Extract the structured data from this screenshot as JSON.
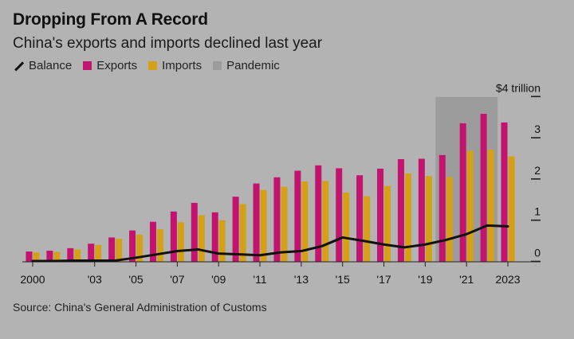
{
  "title": "Dropping From A Record",
  "subtitle": "China's exports and imports declined last year",
  "legend": {
    "balance": "Balance",
    "exports": "Exports",
    "imports": "Imports",
    "pandemic": "Pandemic"
  },
  "source": "Source: China's General Administration of Customs",
  "colors": {
    "exports": "#c2136f",
    "imports": "#d4a017",
    "balance": "#111111",
    "pandemic": "#9c9c9c",
    "background": "#b3b3b3"
  },
  "chart_data": {
    "type": "bar",
    "x": [
      2000,
      2001,
      2002,
      2003,
      2004,
      2005,
      2006,
      2007,
      2008,
      2009,
      2010,
      2011,
      2012,
      2013,
      2014,
      2015,
      2016,
      2017,
      2018,
      2019,
      2020,
      2021,
      2022,
      2023
    ],
    "x_tick_labels": [
      {
        "year": 2000,
        "label": "2000"
      },
      {
        "year": 2003,
        "label": "'03"
      },
      {
        "year": 2005,
        "label": "'05"
      },
      {
        "year": 2007,
        "label": "'07"
      },
      {
        "year": 2009,
        "label": "'09"
      },
      {
        "year": 2011,
        "label": "'11"
      },
      {
        "year": 2013,
        "label": "'13"
      },
      {
        "year": 2015,
        "label": "'15"
      },
      {
        "year": 2017,
        "label": "'17"
      },
      {
        "year": 2019,
        "label": "'19"
      },
      {
        "year": 2021,
        "label": "'21"
      },
      {
        "year": 2023,
        "label": "2023"
      }
    ],
    "series": [
      {
        "name": "Exports",
        "type": "bar",
        "values": [
          0.25,
          0.27,
          0.33,
          0.44,
          0.59,
          0.76,
          0.97,
          1.22,
          1.43,
          1.2,
          1.58,
          1.9,
          2.05,
          2.21,
          2.34,
          2.27,
          2.1,
          2.26,
          2.49,
          2.5,
          2.59,
          3.36,
          3.59,
          3.38
        ]
      },
      {
        "name": "Imports",
        "type": "bar",
        "values": [
          0.23,
          0.24,
          0.3,
          0.41,
          0.56,
          0.66,
          0.79,
          0.96,
          1.13,
          1.01,
          1.4,
          1.74,
          1.82,
          1.95,
          1.96,
          1.68,
          1.59,
          1.84,
          2.14,
          2.08,
          2.06,
          2.69,
          2.72,
          2.56
        ]
      },
      {
        "name": "Balance",
        "type": "line",
        "values": [
          0.02,
          0.02,
          0.03,
          0.03,
          0.03,
          0.1,
          0.18,
          0.26,
          0.3,
          0.2,
          0.18,
          0.16,
          0.23,
          0.26,
          0.38,
          0.59,
          0.51,
          0.42,
          0.35,
          0.42,
          0.53,
          0.67,
          0.88,
          0.86
        ]
      }
    ],
    "pandemic": {
      "start": 2020,
      "end": 2022
    },
    "ylim": [
      0,
      4
    ],
    "y_ticks": [
      {
        "value": 0,
        "label": "0"
      },
      {
        "value": 1,
        "label": "1"
      },
      {
        "value": 2,
        "label": "2"
      },
      {
        "value": 3,
        "label": "3"
      },
      {
        "value": 4,
        "label": "$4 trillion"
      }
    ],
    "grid": false,
    "legend_position": "top-left"
  }
}
